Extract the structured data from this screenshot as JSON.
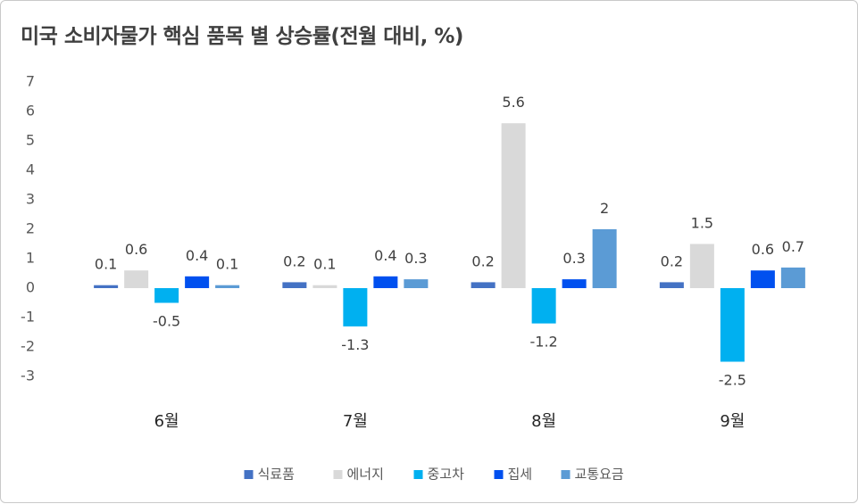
{
  "chart_data": {
    "type": "bar",
    "title": "미국 소비자물가 핵심 품목 별 상승률(전월 대비, %)",
    "categories": [
      "6월",
      "7월",
      "8월",
      "9월"
    ],
    "series": [
      {
        "name": "식료품",
        "color": "#4472c4",
        "values": [
          0.1,
          0.2,
          0.2,
          0.2
        ],
        "labels": [
          "0.1",
          "0.2",
          "0.2",
          "0.2"
        ]
      },
      {
        "name": "에너지",
        "color": "#d9d9d9",
        "values": [
          0.6,
          0.1,
          5.6,
          1.5
        ],
        "labels": [
          "0.6",
          "0.1",
          "5.6",
          "1.5"
        ]
      },
      {
        "name": "중고차",
        "color": "#00b0f0",
        "values": [
          -0.5,
          -1.3,
          -1.2,
          -2.5
        ],
        "labels": [
          "-0.5",
          "-1.3",
          "-1.2",
          "-2.5"
        ]
      },
      {
        "name": "집세",
        "color": "#0050ef",
        "values": [
          0.4,
          0.4,
          0.3,
          0.6
        ],
        "labels": [
          "0.4",
          "0.4",
          "0.3",
          "0.6"
        ]
      },
      {
        "name": "교통요금",
        "color": "#5b9bd5",
        "values": [
          0.1,
          0.3,
          2,
          0.7
        ],
        "labels": [
          "0.1",
          "0.3",
          "2",
          "0.7"
        ]
      }
    ],
    "yticks": [
      7,
      6,
      5,
      4,
      3,
      2,
      1,
      0,
      -1,
      -2,
      -3
    ],
    "ylim": [
      -3,
      7
    ],
    "xlabel": "",
    "ylabel": "",
    "grid": false,
    "legend_position": "bottom"
  }
}
